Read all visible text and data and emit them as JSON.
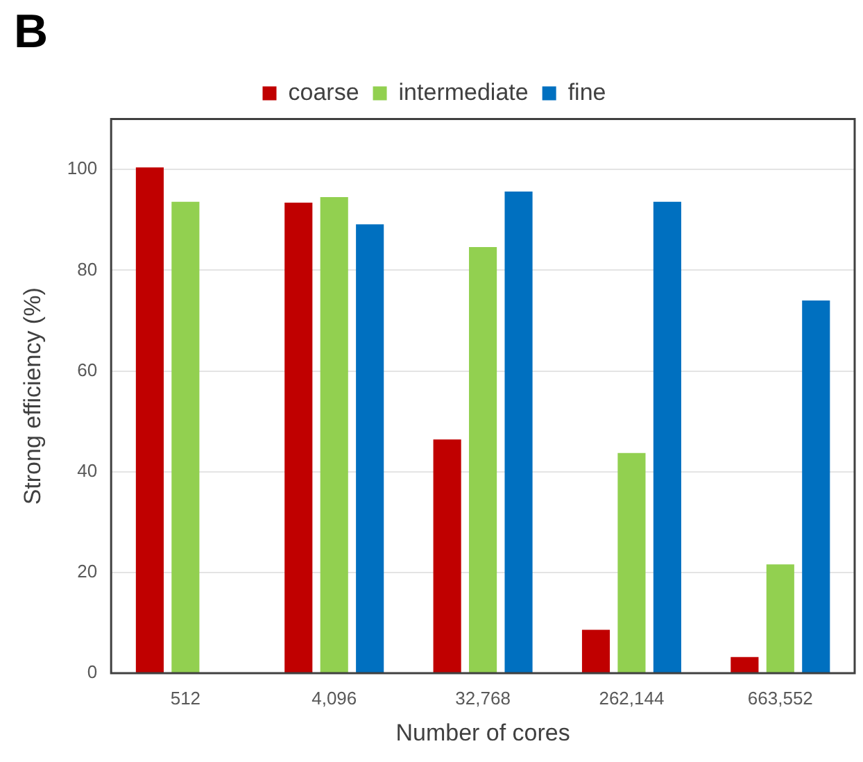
{
  "chart_data": {
    "type": "bar",
    "title": "B",
    "xlabel": "Number of cores",
    "ylabel": "Strong efficiency (%)",
    "categories": [
      "512",
      "4,096",
      "32,768",
      "262,144",
      "663,552"
    ],
    "series": [
      {
        "name": "coarse",
        "color": "#c00000",
        "values": [
          100.4,
          93.4,
          46.4,
          8.6,
          3.2
        ]
      },
      {
        "name": "intermediate",
        "color": "#92d050",
        "values": [
          93.6,
          94.5,
          84.6,
          43.7,
          21.6
        ]
      },
      {
        "name": "fine",
        "color": "#0070c0",
        "values": [
          null,
          89.1,
          95.6,
          93.6,
          74.0
        ]
      }
    ],
    "ylim": [
      0,
      110
    ],
    "yticks": [
      0,
      20,
      40,
      60,
      80,
      100
    ],
    "grid": "y",
    "legend": "top"
  }
}
